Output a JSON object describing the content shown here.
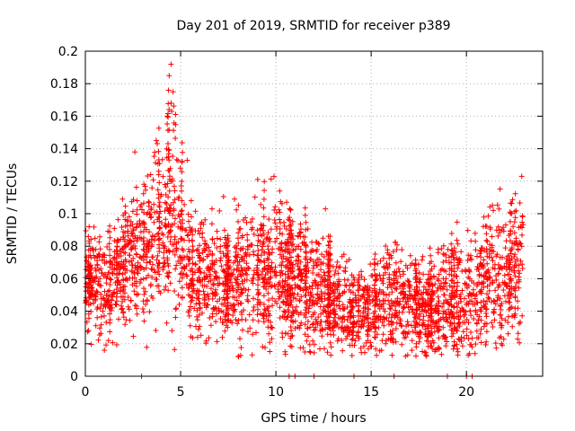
{
  "chart_data": {
    "type": "scatter",
    "title": "Day 201 of 2019, SRMTID for receiver p389",
    "xlabel": "GPS time / hours",
    "ylabel": "SRMTID / TECUs",
    "xlim": [
      0,
      24
    ],
    "ylim": [
      0,
      0.2
    ],
    "xticks": [
      0,
      5,
      10,
      15,
      20
    ],
    "yticks": [
      0,
      0.02,
      0.04,
      0.06,
      0.08,
      0.1,
      0.12,
      0.14,
      0.16,
      0.18,
      0.2
    ],
    "xtick_labels": [
      "0",
      "5",
      "10",
      "15",
      "20"
    ],
    "ytick_labels": [
      "0",
      "0.02",
      "0.04",
      "0.06",
      "0.08",
      "0.1",
      "0.12",
      "0.14",
      "0.16",
      "0.18",
      "0.2"
    ],
    "grid": true,
    "marker": "+",
    "series_color": "#ff0000",
    "zero_markers_x": [
      2.95,
      10.7,
      11.0,
      12.0,
      14.1,
      16.2,
      19.0,
      20.0,
      20.3
    ],
    "envelope_hours": [
      0,
      0.5,
      1,
      1.5,
      2,
      2.5,
      3,
      3.5,
      4,
      4.5,
      5,
      5.5,
      6,
      7,
      8,
      9,
      10,
      11,
      12,
      13,
      14,
      15,
      16,
      16.5,
      17,
      18,
      19,
      19.5,
      20,
      20.5,
      21,
      22,
      23
    ],
    "envelope_center": [
      0.06,
      0.058,
      0.052,
      0.056,
      0.065,
      0.07,
      0.075,
      0.085,
      0.092,
      0.105,
      0.085,
      0.065,
      0.06,
      0.058,
      0.06,
      0.062,
      0.06,
      0.055,
      0.055,
      0.045,
      0.04,
      0.038,
      0.05,
      0.048,
      0.045,
      0.04,
      0.048,
      0.045,
      0.042,
      0.05,
      0.058,
      0.062,
      0.07
    ],
    "envelope_spread": [
      0.022,
      0.02,
      0.02,
      0.02,
      0.025,
      0.03,
      0.03,
      0.03,
      0.035,
      0.045,
      0.035,
      0.025,
      0.025,
      0.025,
      0.025,
      0.03,
      0.032,
      0.025,
      0.025,
      0.02,
      0.018,
      0.018,
      0.022,
      0.025,
      0.02,
      0.02,
      0.022,
      0.025,
      0.022,
      0.025,
      0.028,
      0.03,
      0.03
    ],
    "labeled_peaks": [
      {
        "x": 4.5,
        "y": 0.192
      },
      {
        "x": 4.4,
        "y": 0.185
      },
      {
        "x": 4.6,
        "y": 0.175
      },
      {
        "x": 4.5,
        "y": 0.168
      },
      {
        "x": 4.3,
        "y": 0.16
      },
      {
        "x": 2.6,
        "y": 0.138
      },
      {
        "x": 9.9,
        "y": 0.123
      },
      {
        "x": 22.9,
        "y": 0.123
      },
      {
        "x": 12.6,
        "y": 0.103
      },
      {
        "x": 0.2,
        "y": 0.092
      },
      {
        "x": 1.0,
        "y": 0.016
      }
    ]
  }
}
